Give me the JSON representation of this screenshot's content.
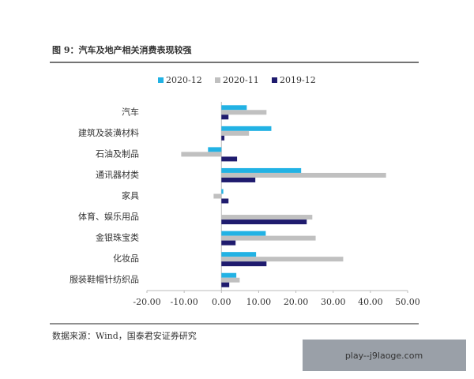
{
  "chart_data": {
    "type": "hbar",
    "title": "图 9：汽车及地产相关消费表现较强",
    "categories": [
      "汽车",
      "建筑及装潢材料",
      "石油及制品",
      "通讯器材类",
      "家具",
      "体育、娱乐用品",
      "金银珠宝类",
      "化妆品",
      "服装鞋帽针纺织品"
    ],
    "series": [
      {
        "name": "2020-12",
        "color": "#22b2e4",
        "values": [
          6.8,
          13.4,
          -3.6,
          21.4,
          0.5,
          null,
          11.9,
          9.3,
          4.0
        ]
      },
      {
        "name": "2020-11",
        "color": "#c0c0c0",
        "values": [
          12.1,
          7.4,
          -10.8,
          44.2,
          -2.1,
          24.4,
          25.3,
          32.7,
          4.9
        ]
      },
      {
        "name": "2019-12",
        "color": "#1f1b6e",
        "values": [
          1.9,
          0.8,
          4.2,
          9.1,
          1.9,
          22.9,
          3.8,
          12.1,
          2.1
        ]
      }
    ],
    "xlim": [
      -20,
      50
    ],
    "xticks": [
      {
        "value": -20,
        "label": "-20.00"
      },
      {
        "value": -10,
        "label": "-10.00"
      },
      {
        "value": 0,
        "label": "0.00"
      },
      {
        "value": 10,
        "label": "10.00"
      },
      {
        "value": 20,
        "label": "20.00"
      },
      {
        "value": 30,
        "label": "30.00"
      },
      {
        "value": 40,
        "label": "40.00"
      },
      {
        "value": 50,
        "label": "50.00"
      }
    ],
    "legend": "top",
    "source": "数据来源：Wind，国泰君安证券研究"
  },
  "watermark": "play--j9laoge.com"
}
